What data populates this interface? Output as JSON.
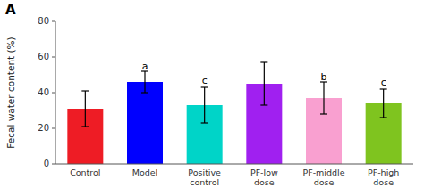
{
  "chart_data": {
    "type": "bar",
    "title": "A",
    "categories": [
      "Control",
      "Model",
      "Positive\ncontrol",
      "PF-low\ndose",
      "PF-middle\ndose",
      "PF-high\ndose"
    ],
    "values": [
      31,
      46,
      33,
      45,
      37,
      34
    ],
    "errors": [
      10,
      6,
      10,
      12,
      9,
      8
    ],
    "colors": [
      "#ee1c25",
      "#0000ff",
      "#00d4c8",
      "#a020f0",
      "#f9a0d0",
      "#7fc41f"
    ],
    "annotations": [
      {
        "text": "a",
        "x": "Model",
        "y": 52
      },
      {
        "text": "c",
        "x": "Positive\ncontrol",
        "y": 44
      },
      {
        "text": "b",
        "x": "PF-middle\ndose",
        "y": 46
      },
      {
        "text": "c",
        "x": "PF-high\ndose",
        "y": 43
      }
    ],
    "ylabel": "Fecal water content (%)",
    "ylim": [
      0,
      80
    ],
    "yticks": [
      0,
      20,
      40,
      60,
      80
    ],
    "grid": false
  }
}
